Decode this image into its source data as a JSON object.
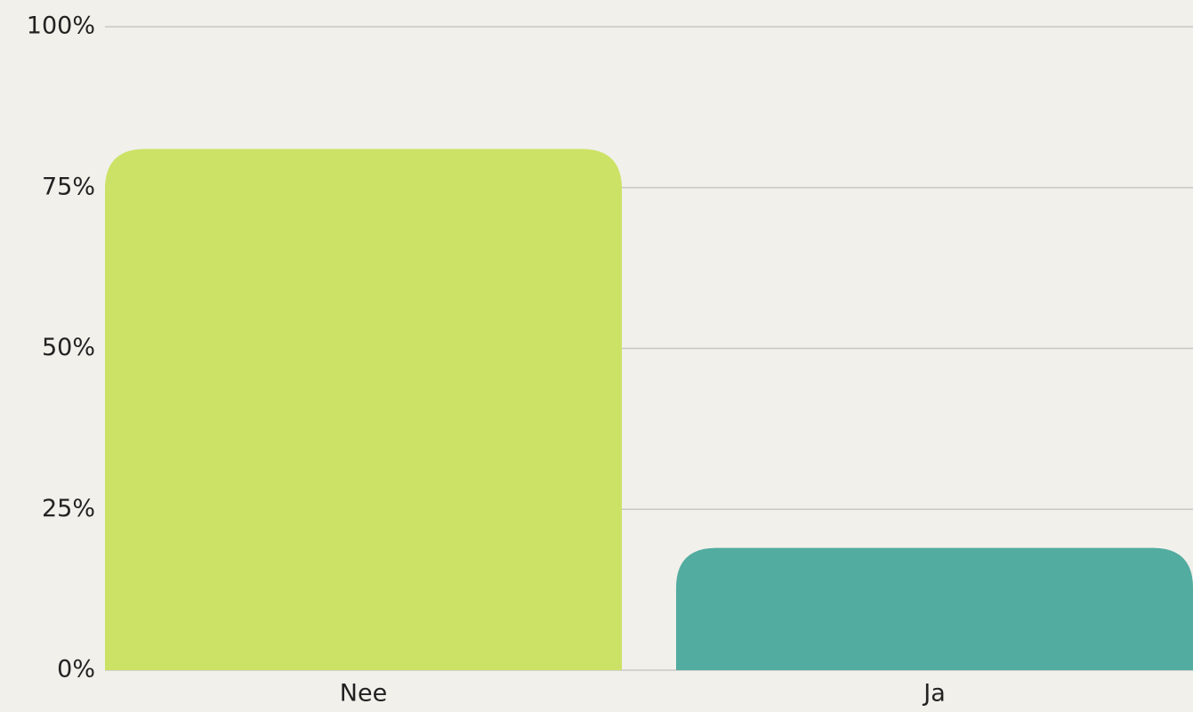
{
  "chart_data": {
    "type": "bar",
    "categories": [
      "Nee",
      "Ja"
    ],
    "values": [
      81,
      19
    ],
    "colors": [
      "#cce266",
      "#52ac9f"
    ],
    "ylim": [
      0,
      100
    ],
    "yticks": [
      {
        "value": 0,
        "label": "0%"
      },
      {
        "value": 25,
        "label": "25%"
      },
      {
        "value": 50,
        "label": "50%"
      },
      {
        "value": 75,
        "label": "75%"
      },
      {
        "value": 100,
        "label": "100%"
      }
    ],
    "grid": true
  }
}
